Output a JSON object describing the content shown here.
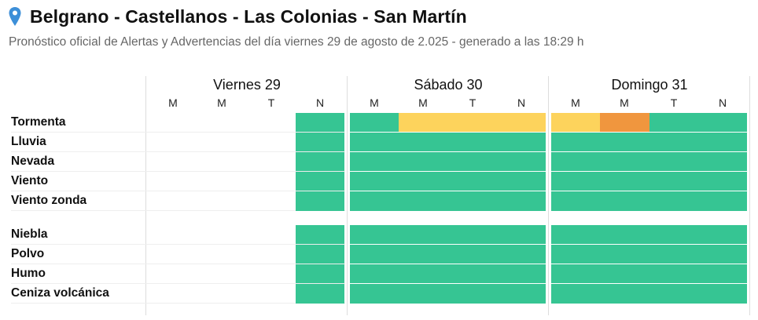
{
  "header": {
    "icon": "map-pin-icon",
    "title": "Belgrano - Castellanos - Las Colonias - San Martín",
    "subtitle": "Pronóstico oficial de Alertas y Advertencias del día viernes 29 de agosto de 2.025 - generado a las 18:29 h"
  },
  "colors": {
    "sin_alerta": "#36c593",
    "amarillo": "#fdd35c",
    "naranja": "#f0963e",
    "divider": "#dddddd"
  },
  "days": [
    {
      "label": "Viernes 29",
      "slots": [
        "M",
        "M",
        "T",
        "N"
      ]
    },
    {
      "label": "Sábado 30",
      "slots": [
        "M",
        "M",
        "T",
        "N"
      ]
    },
    {
      "label": "Domingo 31",
      "slots": [
        "M",
        "M",
        "T",
        "N"
      ]
    }
  ],
  "rows": [
    {
      "label": "Tormenta",
      "levels": [
        "",
        "",
        "",
        "green",
        "green",
        "yellow",
        "yellow",
        "yellow",
        "yellow",
        "orange",
        "green",
        "green"
      ]
    },
    {
      "label": "Lluvia",
      "levels": [
        "",
        "",
        "",
        "green",
        "green",
        "green",
        "green",
        "green",
        "green",
        "green",
        "green",
        "green"
      ]
    },
    {
      "label": "Nevada",
      "levels": [
        "",
        "",
        "",
        "green",
        "green",
        "green",
        "green",
        "green",
        "green",
        "green",
        "green",
        "green"
      ]
    },
    {
      "label": "Viento",
      "levels": [
        "",
        "",
        "",
        "green",
        "green",
        "green",
        "green",
        "green",
        "green",
        "green",
        "green",
        "green"
      ]
    },
    {
      "label": "Viento zonda",
      "levels": [
        "",
        "",
        "",
        "green",
        "green",
        "green",
        "green",
        "green",
        "green",
        "green",
        "green",
        "green"
      ]
    },
    {
      "label": "Niebla",
      "levels": [
        "",
        "",
        "",
        "green",
        "green",
        "green",
        "green",
        "green",
        "green",
        "green",
        "green",
        "green"
      ]
    },
    {
      "label": "Polvo",
      "levels": [
        "",
        "",
        "",
        "green",
        "green",
        "green",
        "green",
        "green",
        "green",
        "green",
        "green",
        "green"
      ]
    },
    {
      "label": "Humo",
      "levels": [
        "",
        "",
        "",
        "green",
        "green",
        "green",
        "green",
        "green",
        "green",
        "green",
        "green",
        "green"
      ]
    },
    {
      "label": "Ceniza volcánica",
      "levels": [
        "",
        "",
        "",
        "green",
        "green",
        "green",
        "green",
        "green",
        "green",
        "green",
        "green",
        "green"
      ]
    }
  ]
}
